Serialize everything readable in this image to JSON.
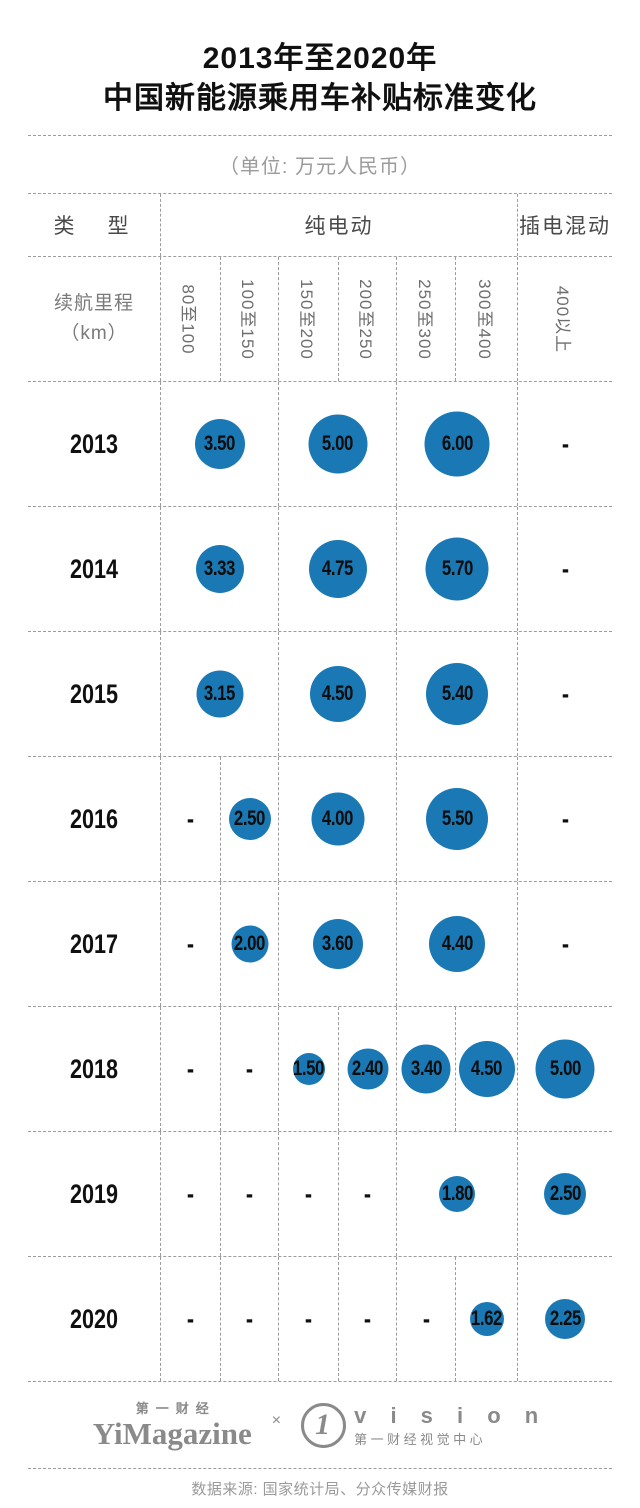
{
  "page": {
    "title_line1": "2013年至2020年",
    "title_line2": "中国新能源乘用车补贴标准变化",
    "unit_note": "（单位: 万元人民币）",
    "source_note": "数据来源: 国家统计局、分众传媒财报"
  },
  "colors": {
    "bubble_blue": "#1a78b5",
    "dashed_line_gray": "#9c9c9c",
    "text_black": "#101010",
    "text_gray": "#8a8a8a"
  },
  "footer": {
    "yimagazine_top": "第一财经",
    "yimagazine_main": "YiMagazine",
    "separator": "×",
    "vision_digit": "1",
    "vision_main": "v i s i o n",
    "vision_sub": "第一财经视觉中心"
  },
  "chart_data": {
    "type": "table",
    "subtype": "bubble-matrix",
    "title": "2013年至2020年中国新能源乘用车补贴标准变化",
    "unit": "万元人民币",
    "type_axis_label": "类　型",
    "column_groups": [
      {
        "label": "纯电动",
        "span": 6
      },
      {
        "label": "插电混动",
        "span": 1
      }
    ],
    "row_axis_label_line1": "续航里程",
    "row_axis_label_line2": "（km）",
    "categories": [
      "80至100",
      "100至150",
      "150至200",
      "200至250",
      "250至300",
      "300至400",
      "400以上"
    ],
    "empty_marker": "-",
    "bubble_scale_note": "bubble diameter proportional to sqrt(value)",
    "rows": [
      {
        "year": "2013",
        "cells": [
          {
            "span": 2,
            "value": 3.5
          },
          {
            "span": 2,
            "value": 5.0
          },
          {
            "span": 2,
            "value": 6.0
          },
          {
            "span": 1,
            "value": null
          }
        ]
      },
      {
        "year": "2014",
        "cells": [
          {
            "span": 2,
            "value": 3.33
          },
          {
            "span": 2,
            "value": 4.75
          },
          {
            "span": 2,
            "value": 5.7
          },
          {
            "span": 1,
            "value": null
          }
        ]
      },
      {
        "year": "2015",
        "cells": [
          {
            "span": 2,
            "value": 3.15
          },
          {
            "span": 2,
            "value": 4.5
          },
          {
            "span": 2,
            "value": 5.4
          },
          {
            "span": 1,
            "value": null
          }
        ]
      },
      {
        "year": "2016",
        "cells": [
          {
            "span": 1,
            "value": null
          },
          {
            "span": 1,
            "value": 2.5
          },
          {
            "span": 2,
            "value": 4.0
          },
          {
            "span": 2,
            "value": 5.5
          },
          {
            "span": 1,
            "value": null
          }
        ]
      },
      {
        "year": "2017",
        "cells": [
          {
            "span": 1,
            "value": null
          },
          {
            "span": 1,
            "value": 2.0
          },
          {
            "span": 2,
            "value": 3.6
          },
          {
            "span": 2,
            "value": 4.4
          },
          {
            "span": 1,
            "value": null
          }
        ]
      },
      {
        "year": "2018",
        "cells": [
          {
            "span": 1,
            "value": null
          },
          {
            "span": 1,
            "value": null
          },
          {
            "span": 1,
            "value": 1.5
          },
          {
            "span": 1,
            "value": 2.4
          },
          {
            "span": 1,
            "value": 3.4
          },
          {
            "span": 1,
            "value": 4.5
          },
          {
            "span": 1,
            "value": 5.0
          }
        ]
      },
      {
        "year": "2019",
        "cells": [
          {
            "span": 1,
            "value": null
          },
          {
            "span": 1,
            "value": null
          },
          {
            "span": 1,
            "value": null
          },
          {
            "span": 1,
            "value": null
          },
          {
            "span": 2,
            "value": 1.8
          },
          {
            "span": 1,
            "value": 2.5
          }
        ]
      },
      {
        "year": "2020",
        "cells": [
          {
            "span": 1,
            "value": null
          },
          {
            "span": 1,
            "value": null
          },
          {
            "span": 1,
            "value": null
          },
          {
            "span": 1,
            "value": null
          },
          {
            "span": 1,
            "value": null
          },
          {
            "span": 1,
            "value": 1.62
          },
          {
            "span": 1,
            "value": 2.25
          }
        ]
      }
    ]
  }
}
